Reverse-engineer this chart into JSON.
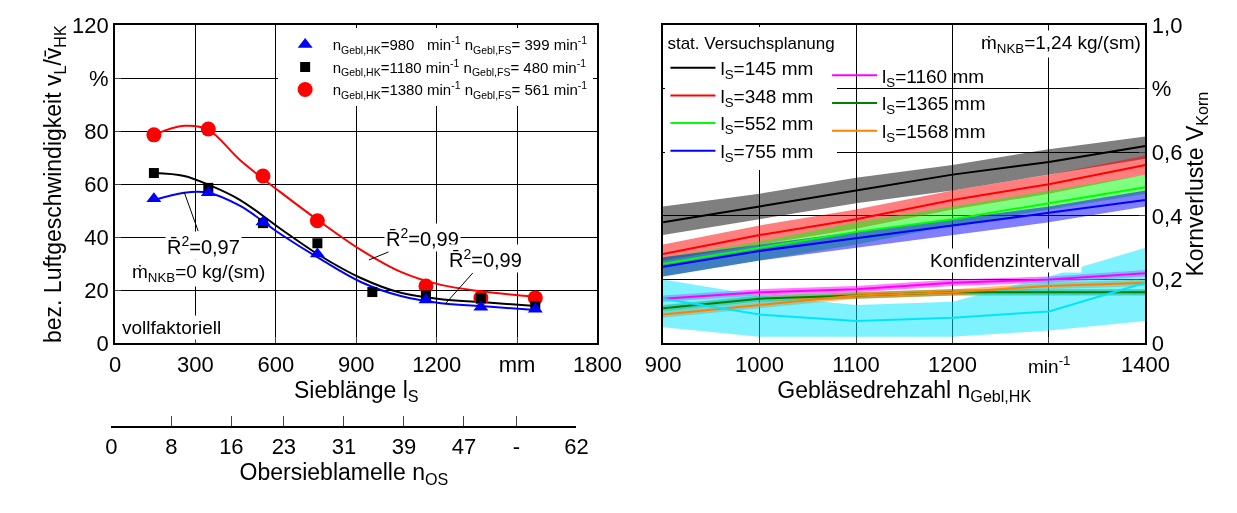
{
  "chart_data": [
    {
      "type": "scatter",
      "xlabel": "Sieblänge l$_{S}$",
      "ylabel": "bez. Luftgeschwindigkeit v$_{L}$/v̄$_{HK}$",
      "x2label": "Obersieblamelle n$_{OS}$",
      "x": [
        145,
        348,
        552,
        755,
        960,
        1160,
        1365,
        1568
      ],
      "series": [
        {
          "name": "n$_{Gebl,HK}$=980   min$^{-1}$ n$_{Gebl,FS}$= 399 min$^{-1}$",
          "color": "#0000ff",
          "marker": "triangle",
          "values": [
            54.5,
            56.8,
            45.7,
            33.7,
            null,
            16.3,
            13.6,
            12.8
          ]
        },
        {
          "name": "n$_{Gebl,HK}$=1180 min$^{-1}$ n$_{Gebl,FS}$= 480 min$^{-1}$",
          "color": "#000000",
          "marker": "square",
          "values": [
            64.2,
            58.6,
            45.3,
            37.7,
            19.3,
            18.1,
            17,
            14
          ]
        },
        {
          "name": "n$_{Gebl,HK}$=1380 min$^{-1}$\nn$_{Gebl,FS}$= 561 min$^{-1}$",
          "color": "#ff0000",
          "marker": "circle",
          "values": [
            78.6,
            80.8,
            63.1,
            46.2,
            null,
            21.6,
            17.1,
            17.1
          ]
        },
        {
          "type": "line",
          "color": "#0000ff",
          "marker": "none",
          "x": [
            145,
            258,
            348,
            467,
            617,
            767,
            917,
            1066,
            1216,
            1366,
            1568
          ],
          "values": [
            54,
            56.8,
            56.8,
            51.8,
            41.2,
            31.7,
            23.1,
            17.8,
            15.1,
            14,
            12.5
          ]
        },
        {
          "type": "line",
          "color": "#000000",
          "marker": "none",
          "x": [
            145,
            258,
            348,
            467,
            617,
            767,
            917,
            1066,
            1216,
            1366,
            1568
          ],
          "values": [
            64.2,
            63.1,
            59.8,
            54,
            43.2,
            32.9,
            24.6,
            19,
            16.6,
            15.5,
            14
          ]
        },
        {
          "type": "line",
          "color": "#ff0000",
          "marker": "none",
          "x": [
            145,
            258,
            348,
            467,
            617,
            767,
            917,
            1066,
            1216,
            1366,
            1568
          ],
          "values": [
            78.6,
            82,
            80.5,
            69,
            57,
            45.7,
            35.2,
            26.9,
            22,
            19.6,
            17.5
          ]
        }
      ],
      "xlim": [
        0,
        1800
      ],
      "xticks": [
        0,
        300,
        600,
        900,
        1200,
        {
          "value": 1500,
          "label": "mm"
        },
        1800
      ],
      "ylim": [
        0,
        120
      ],
      "yticks": [
        0,
        20,
        40,
        60,
        80,
        {
          "value": 100,
          "label": "%"
        },
        120
      ],
      "x2lim": [
        0,
        62
      ],
      "x2ticks": [
        0,
        8,
        16,
        23,
        31,
        39,
        47,
        {
          "value": 54,
          "label": "-"
        },
        62
      ],
      "annotations": [
        {
          "text": "R̄$^{2}$=0,97",
          "x": 258,
          "y": 57
        },
        {
          "text": "R̄$^{2}$=0,99",
          "x": 947,
          "y": 31.4
        },
        {
          "text": "R̄$^{2}$=0,99",
          "x": 1232,
          "y": 14.8
        },
        "ṁ$_{NKB}$=0 kg/(sm)",
        "vollfaktoriell"
      ],
      "grid": true,
      "legend": "top right",
      "line_style": "solid"
    },
    {
      "type": "line",
      "xlabel": "Gebläsedrehzahl n$_{Gebl,HK}$",
      "ylabel": "Kornverluste V$_{Korn}$",
      "legend_title": "stat. Versuchsplanung",
      "x": [
        900,
        1000,
        1100,
        1200,
        1300,
        1400
      ],
      "series": [
        {
          "name": "l$_{S}$=145 mm",
          "color": "#000000",
          "values": [
            0.38,
            0.43,
            0.48,
            0.53,
            0.57,
            0.62
          ],
          "lower": [
            0.34,
            0.39,
            0.44,
            0.48,
            0.53,
            0.58
          ],
          "upper": [
            0.43,
            0.47,
            0.52,
            0.56,
            0.61,
            0.65
          ]
        },
        {
          "name": "l$_{S}$=348 mm",
          "color": "#ff0000",
          "values": [
            0.28,
            0.34,
            0.39,
            0.45,
            0.5,
            0.56
          ],
          "lower": [
            0.26,
            0.31,
            0.36,
            0.42,
            0.47,
            0.53
          ],
          "upper": [
            0.31,
            0.37,
            0.42,
            0.48,
            0.53,
            0.59
          ]
        },
        {
          "name": "l$_{S}$=552 mm",
          "color": "#00ff00",
          "values": [
            0.25,
            0.3,
            0.35,
            0.39,
            0.44,
            0.49
          ],
          "lower": [
            0.21,
            0.26,
            0.31,
            0.37,
            0.42,
            0.47
          ],
          "upper": [
            0.27,
            0.32,
            0.38,
            0.43,
            0.48,
            0.53
          ]
        },
        {
          "name": "l$_{S}$=755 mm",
          "color": "#0000ff",
          "values": [
            0.24,
            0.29,
            0.33,
            0.37,
            0.41,
            0.45
          ],
          "lower": [
            0.21,
            0.26,
            0.3,
            0.34,
            0.38,
            0.43
          ],
          "upper": [
            0.27,
            0.31,
            0.35,
            0.39,
            0.43,
            0.48
          ]
        },
        {
          "name": "l$_{S}$=1160 mm",
          "color": "#ff00ff",
          "values": [
            0.14,
            0.16,
            0.17,
            0.19,
            0.2,
            0.22
          ],
          "lower": [
            0.13,
            0.15,
            0.16,
            0.18,
            0.19,
            0.21
          ],
          "upper": [
            0.15,
            0.17,
            0.18,
            0.2,
            0.21,
            0.23
          ]
        },
        {
          "name": "l$_{S}$=1365 mm",
          "color": "#008000",
          "values": [
            0.11,
            0.14,
            0.15,
            0.16,
            0.16,
            0.16
          ],
          "lower": [
            0.1,
            0.13,
            0.14,
            0.15,
            0.15,
            0.15
          ],
          "upper": [
            0.12,
            0.15,
            0.16,
            0.17,
            0.17,
            0.17
          ]
        },
        {
          "name": "l$_{S}$=1568 mm",
          "color": "#ff8000",
          "values": [
            0.09,
            0.12,
            0.15,
            0.16,
            0.18,
            0.19
          ],
          "lower": [
            0.08,
            0.11,
            0.14,
            0.15,
            0.17,
            0.18
          ],
          "upper": [
            0.1,
            0.13,
            0.16,
            0.17,
            0.19,
            0.2
          ]
        },
        {
          "color": "#00e5ff",
          "values": [
            0.14,
            0.09,
            0.07,
            0.08,
            0.1,
            0.19
          ],
          "lower": [
            0.05,
            0.02,
            0.02,
            0.02,
            0.04,
            0.07
          ],
          "upper": [
            0.2,
            0.15,
            0.12,
            0.13,
            0.21,
            0.3
          ]
        }
      ],
      "xlim": [
        900,
        1400
      ],
      "xticks": [
        900,
        1000,
        1100,
        1200,
        {
          "value": 1300,
          "label": null
        },
        1400
      ],
      "ylim": [
        0,
        1.0
      ],
      "yticks": [
        0,
        {
          "value": 0.2,
          "label": "0,2"
        },
        {
          "value": 0.4,
          "label": "0,4"
        },
        {
          "value": 0.6,
          "label": "0,6"
        },
        {
          "value": 0.8,
          "label": "%"
        },
        {
          "value": 1.0,
          "label": "1,0"
        }
      ],
      "annotations": [
        "ṁ$_{NKB}$=1,24 kg/(sm)",
        "Konfidenzintervall",
        "min$^{-1}$"
      ],
      "grid": true,
      "legend": "top left",
      "line_style": "solid",
      "marker": "none"
    }
  ]
}
